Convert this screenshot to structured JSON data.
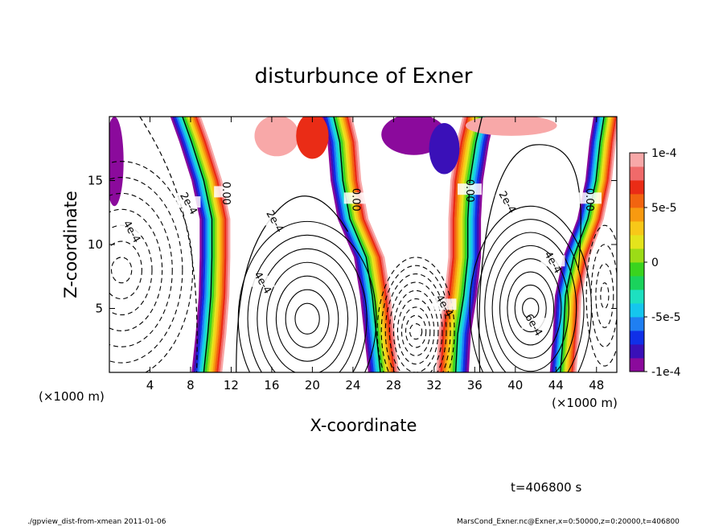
{
  "chart_data": {
    "type": "heatmap",
    "title": "disturbunce of Exner",
    "xlabel": "X-coordinate",
    "ylabel": "Z-coordinate",
    "x_unit": "(×1000 m)",
    "y_unit": "(×1000 m)",
    "xlim": [
      0,
      50
    ],
    "ylim": [
      0,
      20
    ],
    "x_ticks": [
      4,
      8,
      12,
      16,
      20,
      24,
      28,
      32,
      36,
      40,
      44,
      48
    ],
    "y_ticks": [
      5,
      10,
      15
    ],
    "colorbar": {
      "range": [
        -0.0001,
        0.0001
      ],
      "tick_values": [
        0.0001,
        5e-05,
        0,
        -5e-05,
        -0.0001
      ],
      "tick_labels": [
        "1e-4",
        "5e-5",
        "0",
        "-5e-5",
        "-1e-4"
      ],
      "colors": [
        "#8b0a9c",
        "#3a10b8",
        "#1030e8",
        "#1f7ff2",
        "#15c6ee",
        "#1de0c0",
        "#1ad35c",
        "#3ad41e",
        "#9cdc16",
        "#e4e41c",
        "#f8c818",
        "#f89a10",
        "#f26410",
        "#ea2c16",
        "#f06a6a",
        "#f8a8a8"
      ]
    },
    "contour_labels": [
      {
        "text": "0.00",
        "x": 11.5,
        "y": 14.0
      },
      {
        "text": "0.00",
        "x": 24.3,
        "y": 13.5
      },
      {
        "text": "0.00",
        "x": 35.5,
        "y": 14.2
      },
      {
        "text": "0.00",
        "x": 47.3,
        "y": 13.5
      },
      {
        "text": "2e-4",
        "x": 7.8,
        "y": 13.2
      },
      {
        "text": "4e-4",
        "x": 2.2,
        "y": 11.0
      },
      {
        "text": "2e-4",
        "x": 16.3,
        "y": 11.8
      },
      {
        "text": "4e-4",
        "x": 15.1,
        "y": 7.0
      },
      {
        "text": "2e-4",
        "x": 39.2,
        "y": 13.3
      },
      {
        "text": "4e-4",
        "x": 43.7,
        "y": 8.6
      },
      {
        "text": "6e-4",
        "x": 41.8,
        "y": 3.7
      },
      {
        "text": "4e-4",
        "x": 33.0,
        "y": 5.2
      }
    ],
    "grid": false
  },
  "annotations": {
    "time": "t=406800 s",
    "footer_left": "./gpview_dist-from-xmean  2011-01-06",
    "footer_right": "MarsCond_Exner.nc@Exner,x=0:50000,z=0:20000,t=406800"
  }
}
